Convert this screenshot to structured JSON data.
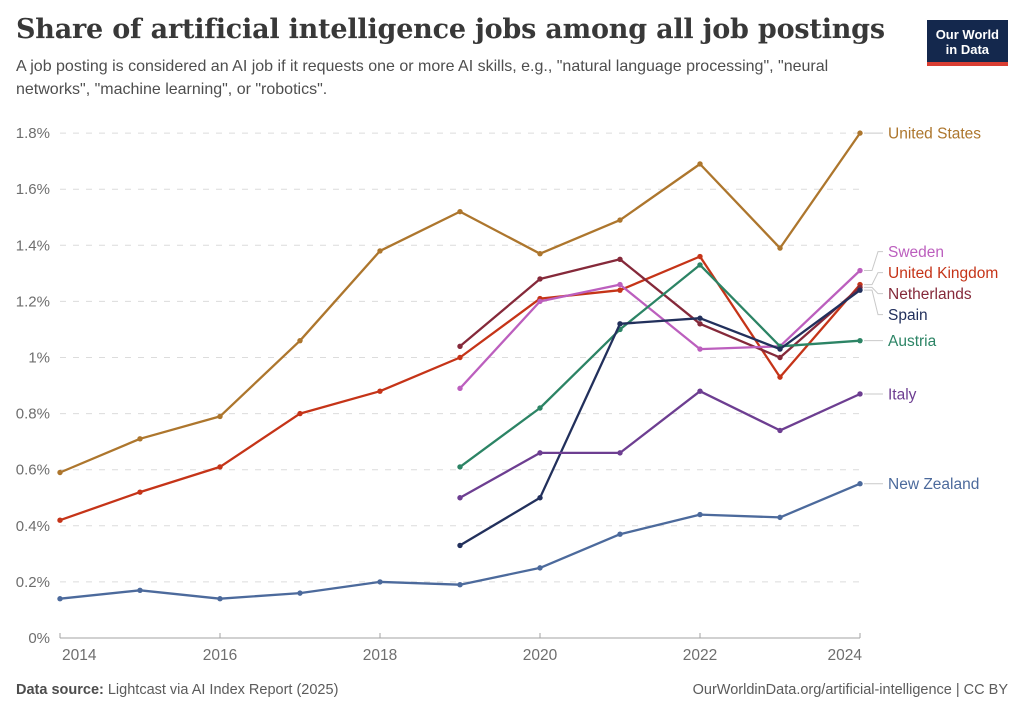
{
  "header": {
    "title": "Share of artificial intelligence jobs among all job postings",
    "subtitle": "A job posting is considered an AI job if it requests one or more AI skills, e.g., \"natural language processing\", \"neural networks\", \"machine learning\", or \"robotics\".",
    "logo": {
      "line1": "Our World",
      "line2": "in Data"
    }
  },
  "chart_data": {
    "type": "line",
    "title": "Share of artificial intelligence jobs among all job postings",
    "xlabel": "",
    "ylabel": "",
    "unit": "%",
    "xlim": [
      2014,
      2024
    ],
    "ylim": [
      0,
      1.8
    ],
    "grid": true,
    "legend_position": "right",
    "xticks": [
      {
        "value": 2014,
        "label": "2014"
      },
      {
        "value": 2016,
        "label": "2016"
      },
      {
        "value": 2018,
        "label": "2018"
      },
      {
        "value": 2020,
        "label": "2020"
      },
      {
        "value": 2022,
        "label": "2022"
      },
      {
        "value": 2024,
        "label": "2024"
      }
    ],
    "yticks": [
      {
        "value": 0,
        "label": "0%"
      },
      {
        "value": 0.2,
        "label": "0.2%"
      },
      {
        "value": 0.4,
        "label": "0.4%"
      },
      {
        "value": 0.6,
        "label": "0.6%"
      },
      {
        "value": 0.8,
        "label": "0.8%"
      },
      {
        "value": 1.0,
        "label": "1%"
      },
      {
        "value": 1.2,
        "label": "1.2%"
      },
      {
        "value": 1.4,
        "label": "1.4%"
      },
      {
        "value": 1.6,
        "label": "1.6%"
      },
      {
        "value": 1.8,
        "label": "1.8%"
      }
    ],
    "series": [
      {
        "name": "United States",
        "color": "#AD762D",
        "points": [
          [
            2014,
            0.59
          ],
          [
            2015,
            0.71
          ],
          [
            2016,
            0.79
          ],
          [
            2017,
            1.06
          ],
          [
            2018,
            1.38
          ],
          [
            2019,
            1.52
          ],
          [
            2020,
            1.37
          ],
          [
            2021,
            1.49
          ],
          [
            2022,
            1.69
          ],
          [
            2023,
            1.39
          ],
          [
            2024,
            1.8
          ]
        ]
      },
      {
        "name": "United Kingdom",
        "color": "#C53418",
        "points": [
          [
            2014,
            0.42
          ],
          [
            2015,
            0.52
          ],
          [
            2016,
            0.61
          ],
          [
            2017,
            0.8
          ],
          [
            2018,
            0.88
          ],
          [
            2019,
            1.0
          ],
          [
            2020,
            1.21
          ],
          [
            2021,
            1.24
          ],
          [
            2022,
            1.36
          ],
          [
            2023,
            0.93
          ],
          [
            2024,
            1.26
          ]
        ]
      },
      {
        "name": "New Zealand",
        "color": "#4C6A9C",
        "points": [
          [
            2014,
            0.14
          ],
          [
            2015,
            0.17
          ],
          [
            2016,
            0.14
          ],
          [
            2017,
            0.16
          ],
          [
            2018,
            0.2
          ],
          [
            2019,
            0.19
          ],
          [
            2020,
            0.25
          ],
          [
            2021,
            0.37
          ],
          [
            2022,
            0.44
          ],
          [
            2023,
            0.43
          ],
          [
            2024,
            0.55
          ]
        ]
      },
      {
        "name": "Netherlands",
        "color": "#85293A",
        "points": [
          [
            2019,
            1.04
          ],
          [
            2020,
            1.28
          ],
          [
            2021,
            1.35
          ],
          [
            2022,
            1.12
          ],
          [
            2023,
            1.0
          ],
          [
            2024,
            1.25
          ]
        ]
      },
      {
        "name": "Sweden",
        "color": "#BC5FBE",
        "points": [
          [
            2019,
            0.89
          ],
          [
            2020,
            1.2
          ],
          [
            2021,
            1.26
          ],
          [
            2022,
            1.03
          ],
          [
            2023,
            1.04
          ],
          [
            2024,
            1.31
          ]
        ]
      },
      {
        "name": "Austria",
        "color": "#2C8465",
        "points": [
          [
            2019,
            0.61
          ],
          [
            2020,
            0.82
          ],
          [
            2021,
            1.1
          ],
          [
            2022,
            1.33
          ],
          [
            2023,
            1.04
          ],
          [
            2024,
            1.06
          ]
        ]
      },
      {
        "name": "Spain",
        "color": "#22305C",
        "points": [
          [
            2019,
            0.33
          ],
          [
            2020,
            0.5
          ],
          [
            2021,
            1.12
          ],
          [
            2022,
            1.14
          ],
          [
            2023,
            1.03
          ],
          [
            2024,
            1.24
          ]
        ]
      },
      {
        "name": "Italy",
        "color": "#6D3E91",
        "points": [
          [
            2019,
            0.5
          ],
          [
            2020,
            0.66
          ],
          [
            2021,
            0.66
          ],
          [
            2022,
            0.88
          ],
          [
            2023,
            0.74
          ],
          [
            2024,
            0.87
          ]
        ]
      }
    ]
  },
  "footer": {
    "source_label": "Data source:",
    "source_value": " Lightcast via AI Index Report (2025)",
    "attribution": "OurWorldinData.org/artificial-intelligence | CC BY"
  }
}
